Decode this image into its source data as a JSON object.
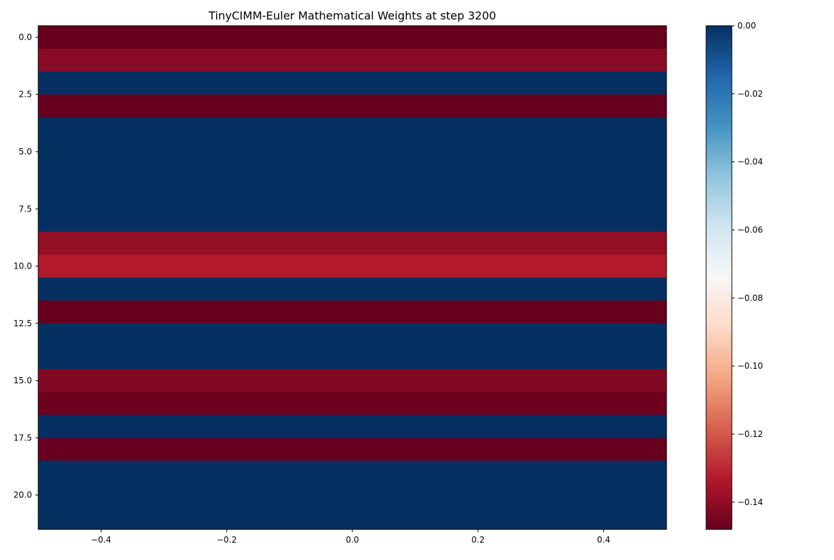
{
  "chart_data": {
    "type": "heatmap",
    "title": "TinyCIMM-Euler Mathematical Weights at step 3200",
    "xlabel": "",
    "ylabel": "",
    "xlim": [
      -0.5,
      0.5
    ],
    "ylim": [
      21.5,
      -0.5
    ],
    "xticks": [
      -0.4,
      -0.2,
      0.0,
      0.2,
      0.4
    ],
    "xtick_labels": [
      "−0.4",
      "−0.2",
      "0.0",
      "0.2",
      "0.4"
    ],
    "yticks": [
      0,
      2.5,
      5,
      7.5,
      10,
      12.5,
      15,
      17.5,
      20
    ],
    "ytick_labels": [
      "0.0",
      "2.5",
      "5.0",
      "7.5",
      "10.0",
      "12.5",
      "15.0",
      "17.5",
      "20.0"
    ],
    "colormap": "RdBu",
    "colorbar": {
      "vmin": -0.148,
      "vmax": 0.0,
      "ticks": [
        0.0,
        -0.02,
        -0.04,
        -0.06,
        -0.08,
        -0.1,
        -0.12,
        -0.14
      ],
      "tick_labels": [
        "0.00",
        "−0.02",
        "−0.04",
        "−0.06",
        "−0.08",
        "−0.10",
        "−0.12",
        "−0.14"
      ]
    },
    "rows": [
      0,
      1,
      2,
      3,
      4,
      5,
      6,
      7,
      8,
      9,
      10,
      11,
      12,
      13,
      14,
      15,
      16,
      17,
      18,
      19,
      20,
      21
    ],
    "values": [
      -0.148,
      -0.141,
      0.0,
      -0.148,
      0.0,
      0.0,
      0.0,
      0.0,
      0.0,
      -0.139,
      -0.133,
      0.0,
      -0.148,
      0.0,
      0.0,
      -0.143,
      -0.147,
      0.0,
      -0.148,
      0.0,
      0.0,
      0.0
    ]
  }
}
